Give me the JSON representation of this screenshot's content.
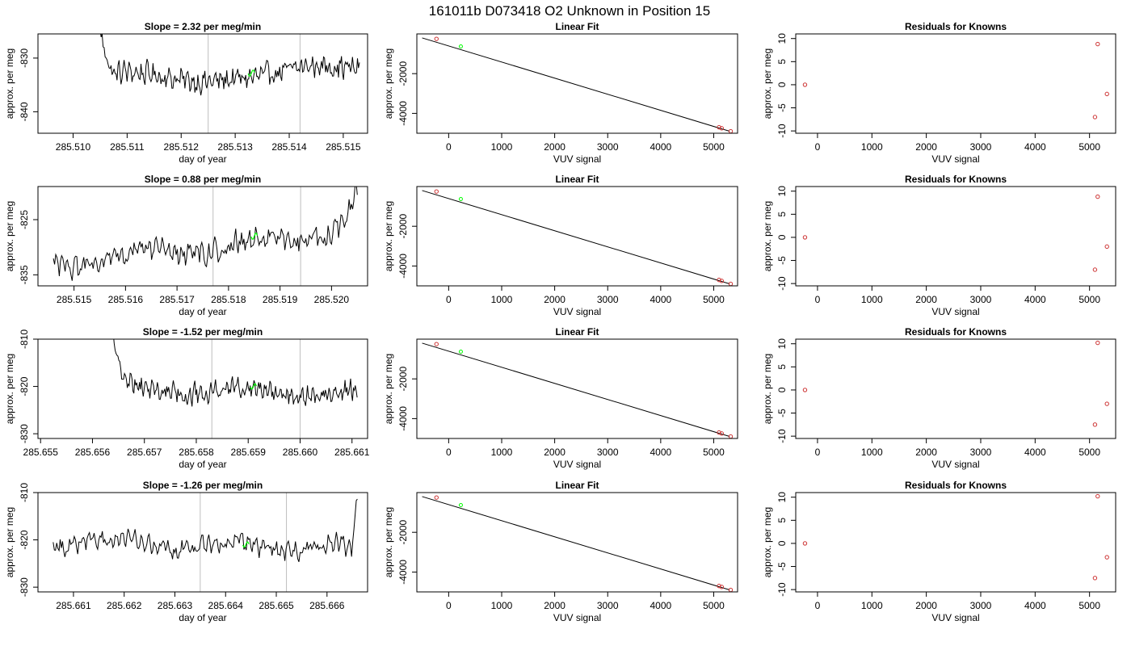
{
  "figure": {
    "title": "161011b      D073418    O2 Unknown in Position  15"
  },
  "colors": {
    "trace": "#000000",
    "vline": "#bebebe",
    "known_points": "#cd3333",
    "unknown_point": "#00ff00",
    "axis": "#000000"
  },
  "chart_data": [
    {
      "type": "line",
      "title": "Slope =  2.32  per meg/min",
      "xlabel": "day of year",
      "ylabel": "approx. per meg",
      "xlim": [
        285.50935,
        285.51545
      ],
      "ylim": [
        -844,
        -825.5
      ],
      "xticks": [
        "285.510",
        "285.511",
        "285.512",
        "285.513",
        "285.514",
        "285.515"
      ],
      "yticks": [
        "-830",
        "-840"
      ],
      "series_x_range": [
        285.5105,
        285.5153
      ],
      "trace_shape": [
        [
          0.0,
          -825.5
        ],
        [
          0.03,
          -830.5
        ],
        [
          0.05,
          -833
        ],
        [
          0.1,
          -832.5
        ],
        [
          0.2,
          -833
        ],
        [
          0.3,
          -834
        ],
        [
          0.4,
          -834.5
        ],
        [
          0.5,
          -834
        ],
        [
          0.6,
          -833.5
        ],
        [
          0.7,
          -832.5
        ],
        [
          0.8,
          -831.5
        ],
        [
          0.9,
          -831.5
        ],
        [
          1.0,
          -832
        ]
      ],
      "vlines": [
        285.5125,
        285.5142
      ],
      "highlight": [
        285.5133,
        -832.8
      ]
    },
    {
      "type": "scatter",
      "title": "Linear Fit",
      "xlabel": "VUV signal",
      "ylabel": "approx. per meg",
      "xlim": [
        -600,
        5450
      ],
      "ylim": [
        -5000,
        0
      ],
      "xticks": [
        "0",
        "1000",
        "2000",
        "3000",
        "4000",
        "5000"
      ],
      "yticks": [
        "-2000",
        "-4000"
      ],
      "fit_line": [
        [
          -500,
          -200
        ],
        [
          5300,
          -4900
        ]
      ],
      "known": [
        [
          -230,
          -250
        ],
        [
          5100,
          -4700
        ],
        [
          5150,
          -4750
        ],
        [
          5320,
          -4900
        ]
      ],
      "unknown": [
        [
          230,
          -630
        ]
      ]
    },
    {
      "type": "scatter",
      "title": "Residuals for Knowns",
      "xlabel": "VUV signal",
      "ylabel": "approx. per meg",
      "xlim": [
        -400,
        5480
      ],
      "ylim": [
        -10.5,
        11
      ],
      "xticks": [
        "0",
        "1000",
        "2000",
        "3000",
        "4000",
        "5000"
      ],
      "yticks": [
        "10",
        "5",
        "0",
        "-5",
        "-10"
      ],
      "points": [
        [
          -230,
          0
        ],
        [
          5150,
          8.8
        ],
        [
          5320,
          -2
        ],
        [
          5100,
          -7
        ]
      ]
    },
    {
      "type": "line",
      "title": "Slope =  0.88  per meg/min",
      "xlabel": "day of year",
      "ylabel": "approx. per meg",
      "xlim": [
        285.5143,
        285.5207
      ],
      "ylim": [
        -837,
        -819
      ],
      "xticks": [
        "285.515",
        "285.516",
        "285.517",
        "285.518",
        "285.519",
        "285.520"
      ],
      "yticks": [
        "-825",
        "-835"
      ],
      "series_x_range": [
        285.5146,
        285.5205
      ],
      "trace_shape": [
        [
          0.0,
          -833
        ],
        [
          0.05,
          -834
        ],
        [
          0.1,
          -833
        ],
        [
          0.2,
          -832
        ],
        [
          0.3,
          -830
        ],
        [
          0.4,
          -831
        ],
        [
          0.5,
          -831.5
        ],
        [
          0.6,
          -829
        ],
        [
          0.7,
          -828
        ],
        [
          0.8,
          -829
        ],
        [
          0.9,
          -828
        ],
        [
          0.95,
          -826
        ],
        [
          0.97,
          -824
        ],
        [
          1.0,
          -819
        ]
      ],
      "vlines": [
        285.5177,
        285.5194
      ],
      "highlight": [
        285.5185,
        -828
      ]
    },
    {
      "type": "scatter",
      "title": "Linear Fit",
      "xlabel": "VUV signal",
      "ylabel": "approx. per meg",
      "xlim": [
        -600,
        5450
      ],
      "ylim": [
        -5000,
        0
      ],
      "xticks": [
        "0",
        "1000",
        "2000",
        "3000",
        "4000",
        "5000"
      ],
      "yticks": [
        "-2000",
        "-4000"
      ],
      "fit_line": [
        [
          -500,
          -200
        ],
        [
          5300,
          -4900
        ]
      ],
      "known": [
        [
          -230,
          -250
        ],
        [
          5100,
          -4700
        ],
        [
          5150,
          -4750
        ],
        [
          5320,
          -4900
        ]
      ],
      "unknown": [
        [
          230,
          -630
        ]
      ]
    },
    {
      "type": "scatter",
      "title": "Residuals for Knowns",
      "xlabel": "VUV signal",
      "ylabel": "approx. per meg",
      "xlim": [
        -400,
        5480
      ],
      "ylim": [
        -10.5,
        11
      ],
      "xticks": [
        "0",
        "1000",
        "2000",
        "3000",
        "4000",
        "5000"
      ],
      "yticks": [
        "10",
        "5",
        "0",
        "-5",
        "-10"
      ],
      "points": [
        [
          -230,
          0
        ],
        [
          5150,
          8.8
        ],
        [
          5320,
          -2
        ],
        [
          5100,
          -7
        ]
      ]
    },
    {
      "type": "line",
      "title": "Slope =  -1.52  per meg/min",
      "xlabel": "day of year",
      "ylabel": "approx. per meg",
      "xlim": [
        285.65495,
        285.6613
      ],
      "ylim": [
        -831,
        -810
      ],
      "xticks": [
        "285.655",
        "285.656",
        "285.657",
        "285.658",
        "285.659",
        "285.660",
        "285.661"
      ],
      "yticks": [
        "-810",
        "-820",
        "-830"
      ],
      "series_x_range": [
        285.6564,
        285.6611
      ],
      "trace_shape": [
        [
          0.0,
          -810
        ],
        [
          0.03,
          -816
        ],
        [
          0.06,
          -818
        ],
        [
          0.1,
          -820
        ],
        [
          0.2,
          -821
        ],
        [
          0.3,
          -822
        ],
        [
          0.4,
          -821
        ],
        [
          0.5,
          -820
        ],
        [
          0.6,
          -820.5
        ],
        [
          0.7,
          -822
        ],
        [
          0.8,
          -822
        ],
        [
          0.9,
          -821
        ],
        [
          1.0,
          -820.5
        ]
      ],
      "vlines": [
        285.6583,
        285.66
      ],
      "highlight": [
        285.6591,
        -820
      ]
    },
    {
      "type": "scatter",
      "title": "Linear Fit",
      "xlabel": "VUV signal",
      "ylabel": "approx. per meg",
      "xlim": [
        -600,
        5450
      ],
      "ylim": [
        -5000,
        0
      ],
      "xticks": [
        "0",
        "1000",
        "2000",
        "3000",
        "4000",
        "5000"
      ],
      "yticks": [
        "-2000",
        "-4000"
      ],
      "fit_line": [
        [
          -500,
          -200
        ],
        [
          5300,
          -4900
        ]
      ],
      "known": [
        [
          -230,
          -250
        ],
        [
          5100,
          -4700
        ],
        [
          5150,
          -4750
        ],
        [
          5320,
          -4900
        ]
      ],
      "unknown": [
        [
          230,
          -630
        ]
      ]
    },
    {
      "type": "scatter",
      "title": "Residuals for Knowns",
      "xlabel": "VUV signal",
      "ylabel": "approx. per meg",
      "xlim": [
        -400,
        5480
      ],
      "ylim": [
        -10.5,
        11
      ],
      "xticks": [
        "0",
        "1000",
        "2000",
        "3000",
        "4000",
        "5000"
      ],
      "yticks": [
        "10",
        "5",
        "0",
        "-5",
        "-10"
      ],
      "points": [
        [
          -230,
          0
        ],
        [
          5150,
          10.2
        ],
        [
          5320,
          -3
        ],
        [
          5100,
          -7.5
        ]
      ]
    },
    {
      "type": "line",
      "title": "Slope =  -1.26  per meg/min",
      "xlabel": "day of year",
      "ylabel": "approx. per meg",
      "xlim": [
        285.6603,
        285.6668
      ],
      "ylim": [
        -831,
        -810
      ],
      "xticks": [
        "285.661",
        "285.662",
        "285.663",
        "285.664",
        "285.665",
        "285.666"
      ],
      "yticks": [
        "-810",
        "-820",
        "-830"
      ],
      "series_x_range": [
        285.6606,
        285.6666
      ],
      "trace_shape": [
        [
          0.0,
          -822
        ],
        [
          0.1,
          -820.5
        ],
        [
          0.2,
          -820
        ],
        [
          0.3,
          -820.5
        ],
        [
          0.4,
          -822
        ],
        [
          0.5,
          -821
        ],
        [
          0.6,
          -820
        ],
        [
          0.7,
          -822
        ],
        [
          0.8,
          -822
        ],
        [
          0.9,
          -821
        ],
        [
          0.95,
          -820
        ],
        [
          0.98,
          -823
        ],
        [
          1.0,
          -810
        ]
      ],
      "vlines": [
        285.6635,
        285.6652
      ],
      "highlight": [
        285.6644,
        -821
      ]
    },
    {
      "type": "scatter",
      "title": "Linear Fit",
      "xlabel": "VUV signal",
      "ylabel": "approx. per meg",
      "xlim": [
        -600,
        5450
      ],
      "ylim": [
        -5000,
        0
      ],
      "xticks": [
        "0",
        "1000",
        "2000",
        "3000",
        "4000",
        "5000"
      ],
      "yticks": [
        "-2000",
        "-4000"
      ],
      "fit_line": [
        [
          -500,
          -200
        ],
        [
          5300,
          -4900
        ]
      ],
      "known": [
        [
          -230,
          -250
        ],
        [
          5100,
          -4700
        ],
        [
          5150,
          -4750
        ],
        [
          5320,
          -4900
        ]
      ],
      "unknown": [
        [
          230,
          -630
        ]
      ]
    },
    {
      "type": "scatter",
      "title": "Residuals for Knowns",
      "xlabel": "VUV signal",
      "ylabel": "approx. per meg",
      "xlim": [
        -400,
        5480
      ],
      "ylim": [
        -10.5,
        11
      ],
      "xticks": [
        "0",
        "1000",
        "2000",
        "3000",
        "4000",
        "5000"
      ],
      "yticks": [
        "10",
        "5",
        "0",
        "-5",
        "-10"
      ],
      "points": [
        [
          -230,
          0
        ],
        [
          5150,
          10.2
        ],
        [
          5320,
          -3
        ],
        [
          5100,
          -7.5
        ]
      ]
    }
  ]
}
